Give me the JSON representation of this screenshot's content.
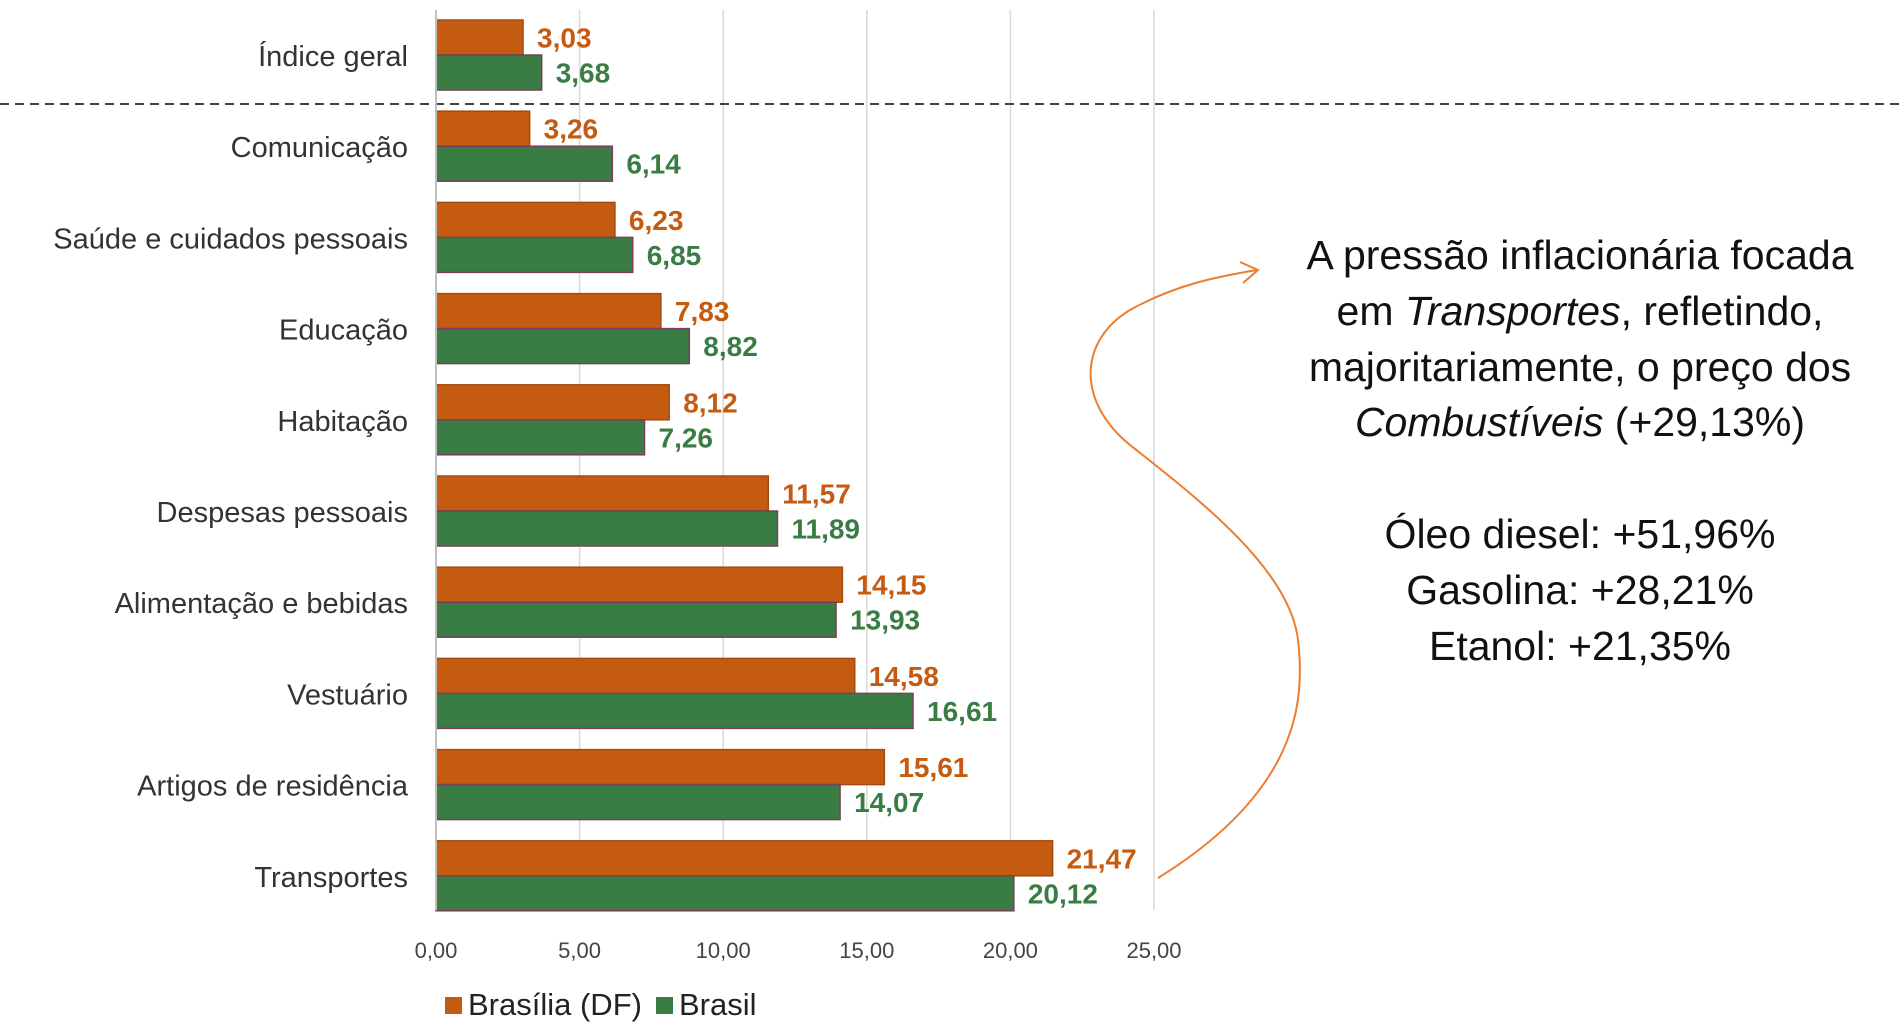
{
  "colors": {
    "brasilia": "#C55A11",
    "brasil": "#3A7D44",
    "arrow": "#ED7D31",
    "axis": "#D9D9D9"
  },
  "chart_data": {
    "type": "bar",
    "orientation": "horizontal",
    "categories": [
      "Índice geral",
      "Comunicação",
      "Saúde e cuidados pessoais",
      "Educação",
      "Habitação",
      "Despesas pessoais",
      "Alimentação e bebidas",
      "Vestuário",
      "Artigos de residência",
      "Transportes"
    ],
    "series": [
      {
        "name": "Brasília (DF)",
        "values": [
          3.03,
          3.26,
          6.23,
          7.83,
          8.12,
          11.57,
          14.15,
          14.58,
          15.61,
          21.47
        ],
        "labels": [
          "3,03",
          "3,26",
          "6,23",
          "7,83",
          "8,12",
          "11,57",
          "14,15",
          "14,58",
          "15,61",
          "21,47"
        ]
      },
      {
        "name": "Brasil",
        "values": [
          3.68,
          6.14,
          6.85,
          8.82,
          7.26,
          11.89,
          13.93,
          16.61,
          14.07,
          20.12
        ],
        "labels": [
          "3,68",
          "6,14",
          "6,85",
          "8,82",
          "7,26",
          "11,89",
          "13,93",
          "16,61",
          "14,07",
          "20,12"
        ]
      }
    ],
    "xlim": [
      0,
      25
    ],
    "xticks": [
      0,
      5,
      10,
      15,
      20,
      25
    ],
    "xtick_labels": [
      "0,00",
      "5,00",
      "10,00",
      "15,00",
      "20,00",
      "25,00"
    ],
    "grid": true,
    "legend_position": "bottom",
    "separator_after_first_category": true
  },
  "annotation": {
    "line1": "A pressão inflacionária focada",
    "line2_prefix": "em ",
    "line2_italic": "Transportes",
    "line2_suffix": ", refletindo,",
    "line3": "majoritariamente, o preço dos",
    "line4_italic": "Combustíveis",
    "line4_suffix": " (+29,13%)",
    "items": [
      "Óleo diesel: +51,96%",
      "Gasolina: +28,21%",
      "Etanol: +21,35%"
    ]
  },
  "legend": {
    "brasilia_label": "Brasília (DF)",
    "brasil_label": "Brasil"
  }
}
